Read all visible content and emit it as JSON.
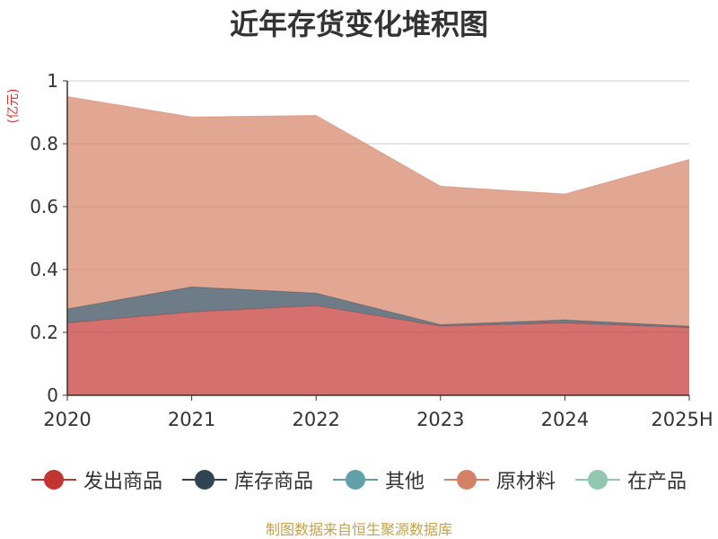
{
  "chart_data": {
    "type": "area",
    "stacked": true,
    "title": "近年存货变化堆积图",
    "unit_label": "(亿元)",
    "categories": [
      "2020",
      "2021",
      "2022",
      "2023",
      "2024",
      "2025H"
    ],
    "ylim": [
      0,
      1
    ],
    "yticks": [
      0,
      0.2,
      0.4,
      0.6,
      0.8,
      1
    ],
    "ytick_labels": [
      "0",
      "0.2",
      "0.4",
      "0.6",
      "0.8",
      "1"
    ],
    "grid": true,
    "legend_position": "bottom",
    "series": [
      {
        "name": "发出商品",
        "color": "#c23531",
        "fill_opacity": 0.7,
        "values": [
          0.23,
          0.265,
          0.285,
          0.22,
          0.23,
          0.215
        ]
      },
      {
        "name": "库存商品",
        "color": "#2f4554",
        "fill_opacity": 0.7,
        "values": [
          0.045,
          0.08,
          0.04,
          0.005,
          0.01,
          0.005
        ]
      },
      {
        "name": "其他",
        "color": "#61a0a8",
        "fill_opacity": 0.7,
        "values": [
          0,
          0,
          0,
          0,
          0,
          0
        ]
      },
      {
        "name": "原材料",
        "color": "#d48265",
        "fill_opacity": 0.7,
        "values": [
          0.675,
          0.54,
          0.565,
          0.44,
          0.4,
          0.53
        ]
      },
      {
        "name": "在产品",
        "color": "#91c7ae",
        "fill_opacity": 0.7,
        "values": [
          0,
          0,
          0,
          0,
          0,
          0
        ]
      }
    ],
    "source": "制图数据来自恒生聚源数据库"
  }
}
